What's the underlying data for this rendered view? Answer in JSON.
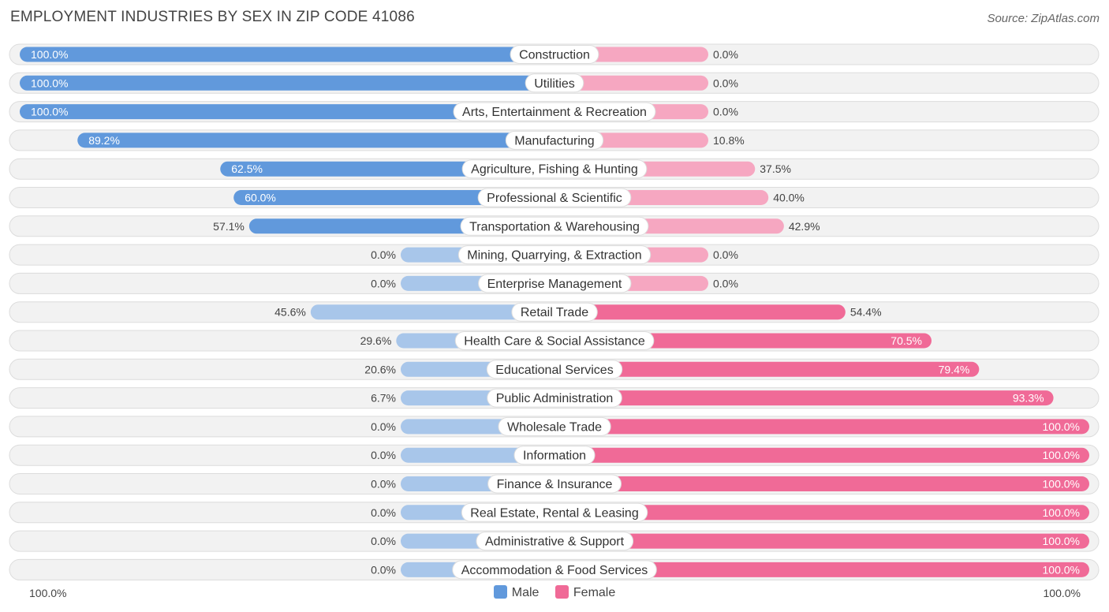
{
  "chart_data": {
    "type": "bar",
    "orientation": "horizontal-diverging",
    "title": "EMPLOYMENT INDUSTRIES BY SEX IN ZIP CODE 41086",
    "source": "Source: ZipAtlas.com",
    "axis_left_label": "100.0%",
    "axis_right_label": "100.0%",
    "xlim": [
      0,
      100
    ],
    "legend": {
      "male": "Male",
      "female": "Female"
    },
    "colors": {
      "male_strong": "#6199dc",
      "male_light": "#a8c6ea",
      "female_strong": "#f06a97",
      "female_light": "#f6a7c1",
      "row_bg": "#f2f2f2",
      "row_border": "#dcdcdc"
    },
    "categories": [
      "Construction",
      "Utilities",
      "Arts, Entertainment & Recreation",
      "Manufacturing",
      "Agriculture, Fishing & Hunting",
      "Professional & Scientific",
      "Transportation & Warehousing",
      "Mining, Quarrying, & Extraction",
      "Enterprise Management",
      "Retail Trade",
      "Health Care & Social Assistance",
      "Educational Services",
      "Public Administration",
      "Wholesale Trade",
      "Information",
      "Finance & Insurance",
      "Real Estate, Rental & Leasing",
      "Administrative & Support",
      "Accommodation & Food Services"
    ],
    "series": [
      {
        "name": "Male",
        "values": [
          100.0,
          100.0,
          100.0,
          89.2,
          62.5,
          60.0,
          57.1,
          0.0,
          0.0,
          45.6,
          29.6,
          20.6,
          6.7,
          0.0,
          0.0,
          0.0,
          0.0,
          0.0,
          0.0
        ],
        "labels": [
          "100.0%",
          "100.0%",
          "100.0%",
          "89.2%",
          "62.5%",
          "60.0%",
          "57.1%",
          "0.0%",
          "0.0%",
          "45.6%",
          "29.6%",
          "20.6%",
          "6.7%",
          "0.0%",
          "0.0%",
          "0.0%",
          "0.0%",
          "0.0%",
          "0.0%"
        ]
      },
      {
        "name": "Female",
        "values": [
          0.0,
          0.0,
          0.0,
          10.8,
          37.5,
          40.0,
          42.9,
          0.0,
          0.0,
          54.4,
          70.5,
          79.4,
          93.3,
          100.0,
          100.0,
          100.0,
          100.0,
          100.0,
          100.0
        ],
        "labels": [
          "0.0%",
          "0.0%",
          "0.0%",
          "10.8%",
          "37.5%",
          "40.0%",
          "42.9%",
          "0.0%",
          "0.0%",
          "54.4%",
          "70.5%",
          "79.4%",
          "93.3%",
          "100.0%",
          "100.0%",
          "100.0%",
          "100.0%",
          "100.0%",
          "100.0%"
        ]
      }
    ]
  }
}
